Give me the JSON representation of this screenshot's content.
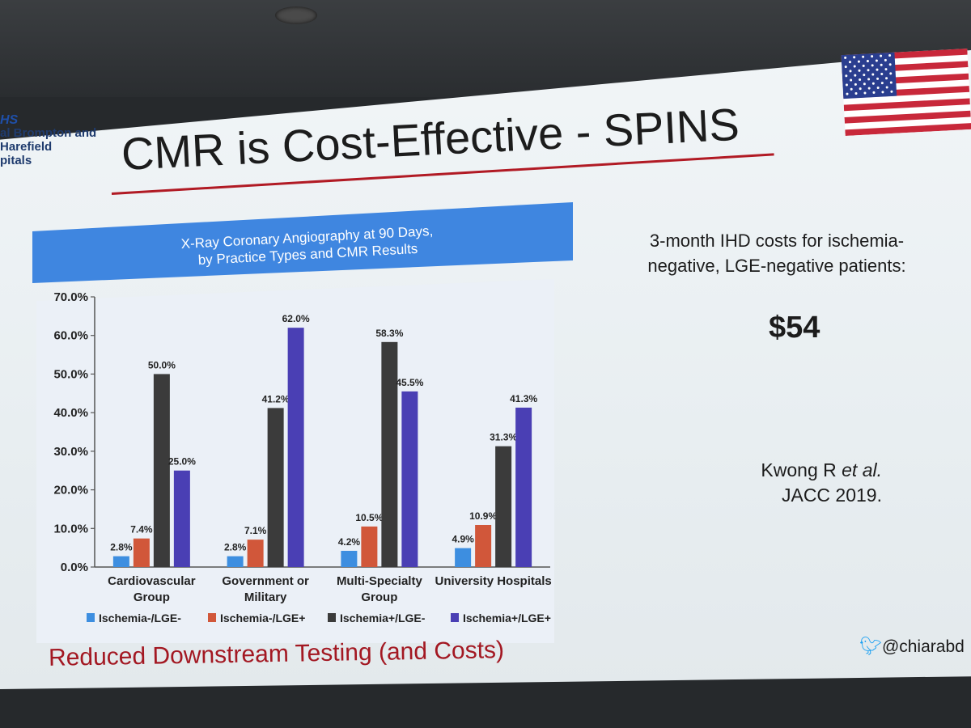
{
  "org_logo": {
    "mark": "HS",
    "line1": "al Brompton and Harefield",
    "line2": "pitals"
  },
  "slide_title": "CMR is Cost-Effective - SPINS",
  "flag_icon": "us-flag-icon",
  "colors": {
    "title_rule": "#b11a24",
    "header_band": "#3f86e0",
    "footer_text": "#a31822"
  },
  "chart_data": {
    "type": "bar",
    "title_lines": [
      "X-Ray Coronary Angiography at 90 Days,",
      "by Practice Types and CMR Results"
    ],
    "categories": [
      [
        "Cardiovascular",
        "Group"
      ],
      [
        "Government or",
        "Military"
      ],
      [
        "Multi-Specialty",
        "Group"
      ],
      [
        "University Hospitals"
      ]
    ],
    "y_ticks": [
      "0.0%",
      "10.0%",
      "20.0%",
      "30.0%",
      "40.0%",
      "50.0%",
      "60.0%",
      "70.0%"
    ],
    "ylim": [
      0,
      70
    ],
    "series": [
      {
        "name": "Ischemia-/LGE-",
        "color": "#3d8ee0",
        "values": [
          2.8,
          2.8,
          4.2,
          4.9
        ],
        "labels": [
          "2.8%",
          "2.8%",
          "4.2%",
          "4.9%"
        ]
      },
      {
        "name": "Ischemia-/LGE+",
        "color": "#d1573a",
        "values": [
          7.4,
          7.1,
          10.5,
          10.9
        ],
        "labels": [
          "7.4%",
          "7.1%",
          "10.5%",
          "10.9%"
        ]
      },
      {
        "name": "Ischemia+/LGE-",
        "color": "#3b3b3b",
        "values": [
          50.0,
          41.2,
          58.3,
          31.3
        ],
        "labels": [
          "50.0%",
          "41.2%",
          "58.3%",
          "31.3%"
        ]
      },
      {
        "name": "Ischemia+/LGE+",
        "color": "#4a3fb4",
        "values": [
          25.0,
          62.0,
          45.5,
          41.3
        ],
        "labels": [
          "25.0%",
          "62.0%",
          "45.5%",
          "41.3%"
        ]
      }
    ],
    "legend_position": "bottom",
    "grid": false
  },
  "side_text": "3-month IHD costs for ischemia-negative, LGE-negative patients:",
  "cost_value": "$54",
  "citation": {
    "authors": "Kwong R ",
    "etal": "et al.",
    "journal": "JACC 2019."
  },
  "footer": "Reduced  Downstream Testing (and Costs)",
  "twitter_handle": "@chiarabd"
}
